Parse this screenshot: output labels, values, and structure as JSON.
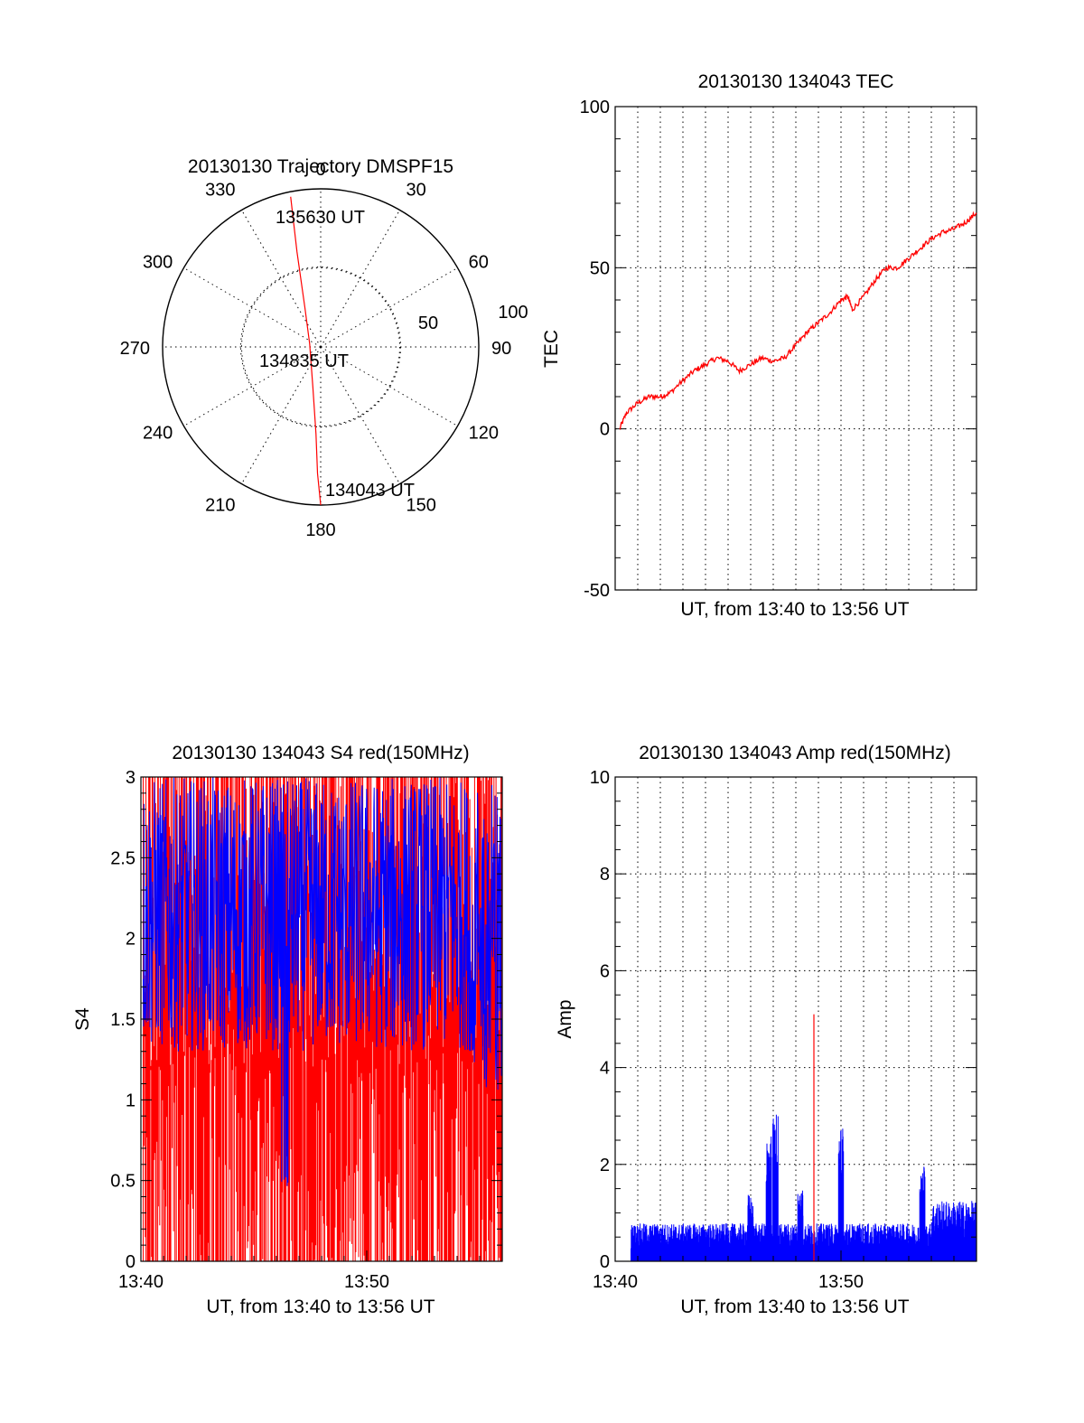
{
  "colors": {
    "red": "#ff0000",
    "blue": "#0000ff",
    "axis": "#000000"
  },
  "chart_data": [
    {
      "id": "trajectory",
      "type": "polar",
      "title": "20130130 Trajectory DMSPF15",
      "angle_labels": [
        "0",
        "30",
        "60",
        "90",
        "120",
        "150",
        "180",
        "210",
        "240",
        "270",
        "300",
        "330"
      ],
      "radius_labels": [
        "50",
        "100"
      ],
      "radius_max": 100,
      "track": [
        [
          -19,
          95
        ],
        [
          -15,
          60
        ],
        [
          -10,
          25
        ],
        [
          -7,
          2
        ],
        [
          -5,
          -25
        ],
        [
          -3,
          -55
        ],
        [
          -2,
          -80
        ],
        [
          0,
          -100
        ]
      ],
      "annotations": [
        {
          "text": "135630 UT",
          "at": [
            -13,
            90
          ]
        },
        {
          "text": "134835 UT",
          "at": [
            -38,
            -10
          ]
        },
        {
          "text": "134043 UT",
          "at": [
            2,
            -98
          ]
        }
      ]
    },
    {
      "id": "tec",
      "type": "line",
      "title": "20130130 134043 TEC",
      "ylabel": "TEC",
      "xlabel": "UT, from 13:40 to 13:56 UT",
      "ylim": [
        -50,
        100
      ],
      "yticks": [
        "-50",
        "0",
        "50",
        "100"
      ],
      "xlim": [
        0,
        16
      ],
      "series": [
        {
          "color": "red",
          "x": [
            0.2,
            0.5,
            1.0,
            1.5,
            2.0,
            2.4,
            3.0,
            3.5,
            4.0,
            4.5,
            5.0,
            5.5,
            6.0,
            6.5,
            7.0,
            7.5,
            8.0,
            8.5,
            9.0,
            9.5,
            10.0,
            10.3,
            10.5,
            11.0,
            11.5,
            12.0,
            12.5,
            13.0,
            13.5,
            14.0,
            14.5,
            15.0,
            15.5,
            16.0
          ],
          "y": [
            0,
            5,
            8,
            10,
            10,
            11,
            15,
            18,
            20,
            22,
            21,
            18,
            20,
            22,
            21,
            22,
            26,
            30,
            33,
            36,
            40,
            41,
            37,
            41,
            46,
            50,
            50,
            53,
            56,
            59,
            61,
            62,
            64,
            67
          ]
        }
      ]
    },
    {
      "id": "s4",
      "type": "line",
      "title": "20130130 134043 S4 red(150MHz)",
      "ylabel": "S4",
      "xlabel": "UT, from 13:40 to 13:56 UT",
      "ylim": [
        0,
        3
      ],
      "yticks": [
        "0",
        "0.5",
        "1",
        "1.5",
        "2",
        "2.5",
        "3"
      ],
      "xlim": [
        0,
        16
      ],
      "xticks": [
        {
          "at": 0,
          "label": "13:40"
        },
        {
          "at": 10,
          "label": "13:50"
        }
      ],
      "series": [
        {
          "color": "red",
          "x_range": [
            0.1,
            16
          ],
          "kind": "dense-noise",
          "y_low": 0,
          "y_high": 3
        },
        {
          "color": "blue",
          "x_range": [
            0.1,
            16
          ],
          "kind": "dense-noise",
          "y_low": 1.3,
          "y_high": 3
        }
      ]
    },
    {
      "id": "amp",
      "type": "line",
      "title": "20130130 134043 Amp red(150MHz)",
      "ylabel": "Amp",
      "xlabel": "UT, from 13:40 to 13:56 UT",
      "ylim": [
        0,
        10
      ],
      "yticks": [
        "0",
        "2",
        "4",
        "6",
        "8",
        "10"
      ],
      "xlim": [
        0,
        16
      ],
      "xticks": [
        {
          "at": 0,
          "label": "13:40"
        },
        {
          "at": 10,
          "label": "13:50"
        }
      ],
      "series": [
        {
          "color": "blue",
          "x_range": [
            0.7,
            16
          ],
          "kind": "dense-noise",
          "baseline": 0.6,
          "peaks": [
            [
              6.0,
              1.4
            ],
            [
              6.8,
              2.6
            ],
            [
              7.1,
              3.1
            ],
            [
              8.2,
              1.5
            ],
            [
              10.0,
              2.8
            ],
            [
              13.6,
              2.0
            ]
          ]
        },
        {
          "color": "red",
          "x": [
            8.8,
            8.8
          ],
          "y": [
            0,
            5.1
          ]
        }
      ]
    }
  ]
}
